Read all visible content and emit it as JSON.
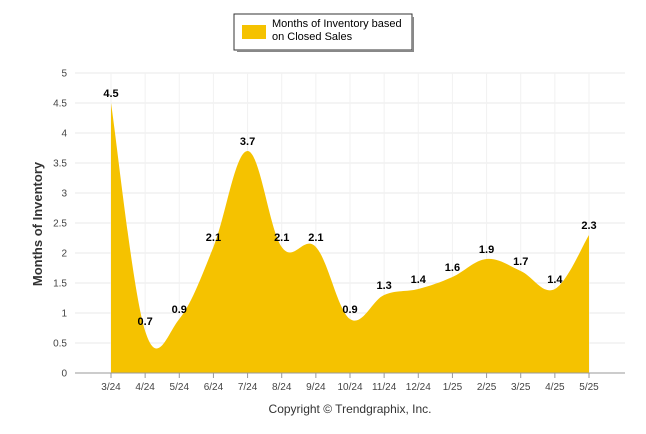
{
  "chart_data": {
    "type": "area",
    "categories": [
      "3/24",
      "4/24",
      "5/24",
      "6/24",
      "7/24",
      "8/24",
      "9/24",
      "10/24",
      "11/24",
      "12/24",
      "1/25",
      "2/25",
      "3/25",
      "4/25",
      "5/25"
    ],
    "series": [
      {
        "name": "Months of Inventory based on Closed Sales",
        "values": [
          4.5,
          0.7,
          0.9,
          2.1,
          3.7,
          2.1,
          2.1,
          0.9,
          1.3,
          1.4,
          1.6,
          1.9,
          1.7,
          1.4,
          2.3
        ],
        "data_labels": [
          "4.5",
          "0.7",
          "0.9",
          "2.1",
          "3.7",
          "2.1",
          "2.1",
          "0.9",
          "1.3",
          "1.4",
          "1.6",
          "1.9",
          "1.7",
          "1.4",
          "2.3"
        ],
        "color": "#F5C200"
      }
    ],
    "ylabel": "Months of Inventory",
    "xlabel": "",
    "ylim": [
      0,
      5
    ],
    "yticks": [
      "0",
      "0.5",
      "1",
      "1.5",
      "2",
      "2.5",
      "3",
      "3.5",
      "4",
      "4.5",
      "5"
    ],
    "grid": true,
    "legend_position": "top-center"
  },
  "legend": {
    "line1": "Months of Inventory based",
    "line2": "on Closed Sales"
  },
  "footer": {
    "copyright": "Copyright © Trendgraphix, Inc."
  },
  "colors": {
    "fill": "#F5C200",
    "grid": "#E8E8E8",
    "axis": "#999999"
  }
}
